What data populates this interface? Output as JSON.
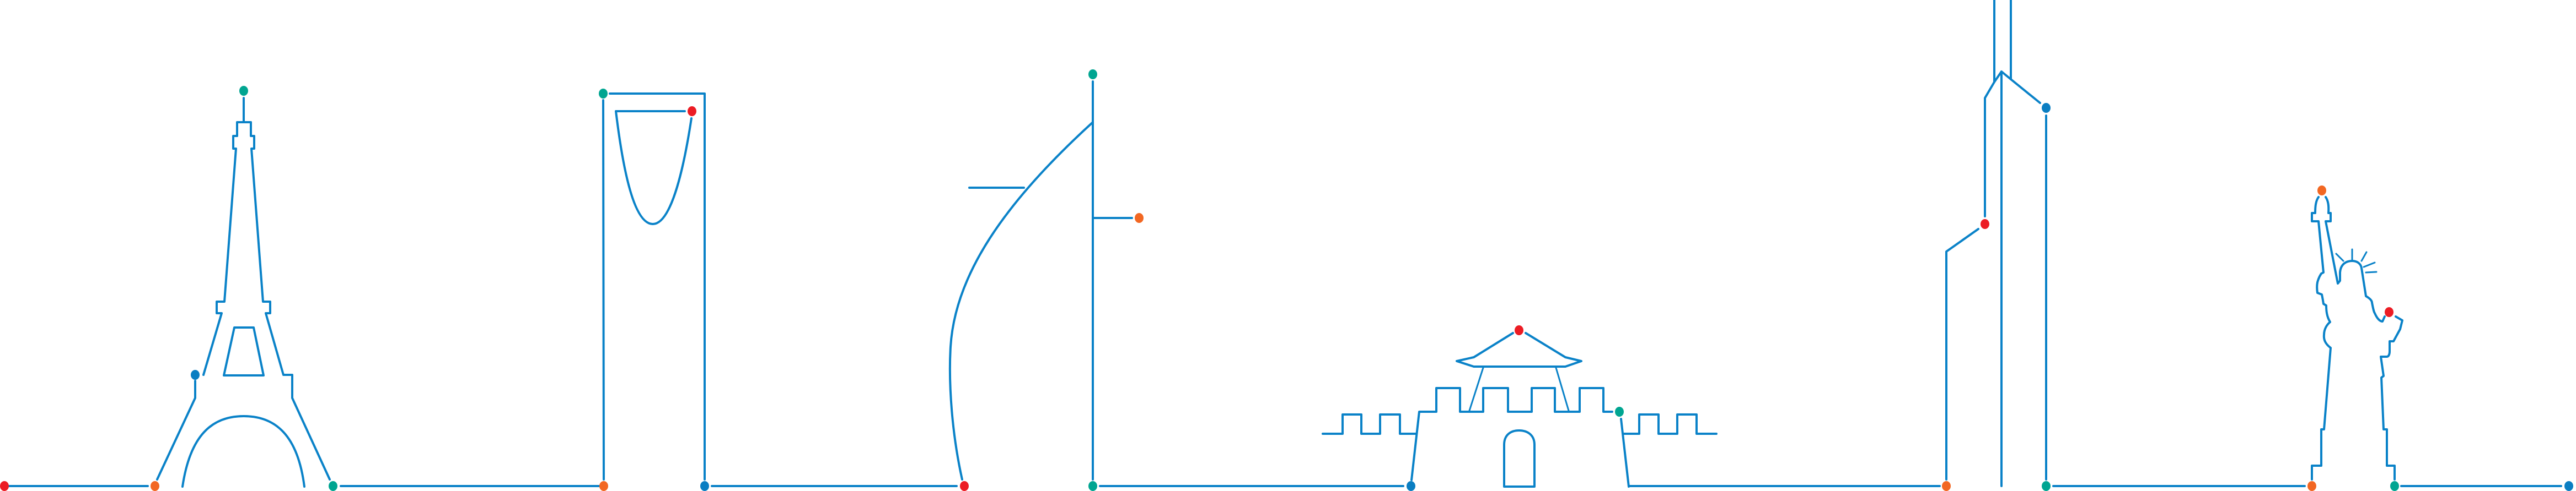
{
  "colors": {
    "line": "#0a82c8",
    "red": "#ec1c24",
    "orange": "#f26722",
    "green": "#00a591",
    "blue": "#0a7ec2",
    "background": "#ffffff"
  },
  "landmarks": [
    {
      "icon": "eiffel-tower-icon"
    },
    {
      "icon": "kingdom-tower-icon"
    },
    {
      "icon": "burj-al-arab-icon"
    },
    {
      "icon": "fortress-gate-icon"
    },
    {
      "icon": "skyscraper-icon"
    },
    {
      "icon": "statue-of-liberty-icon"
    }
  ]
}
